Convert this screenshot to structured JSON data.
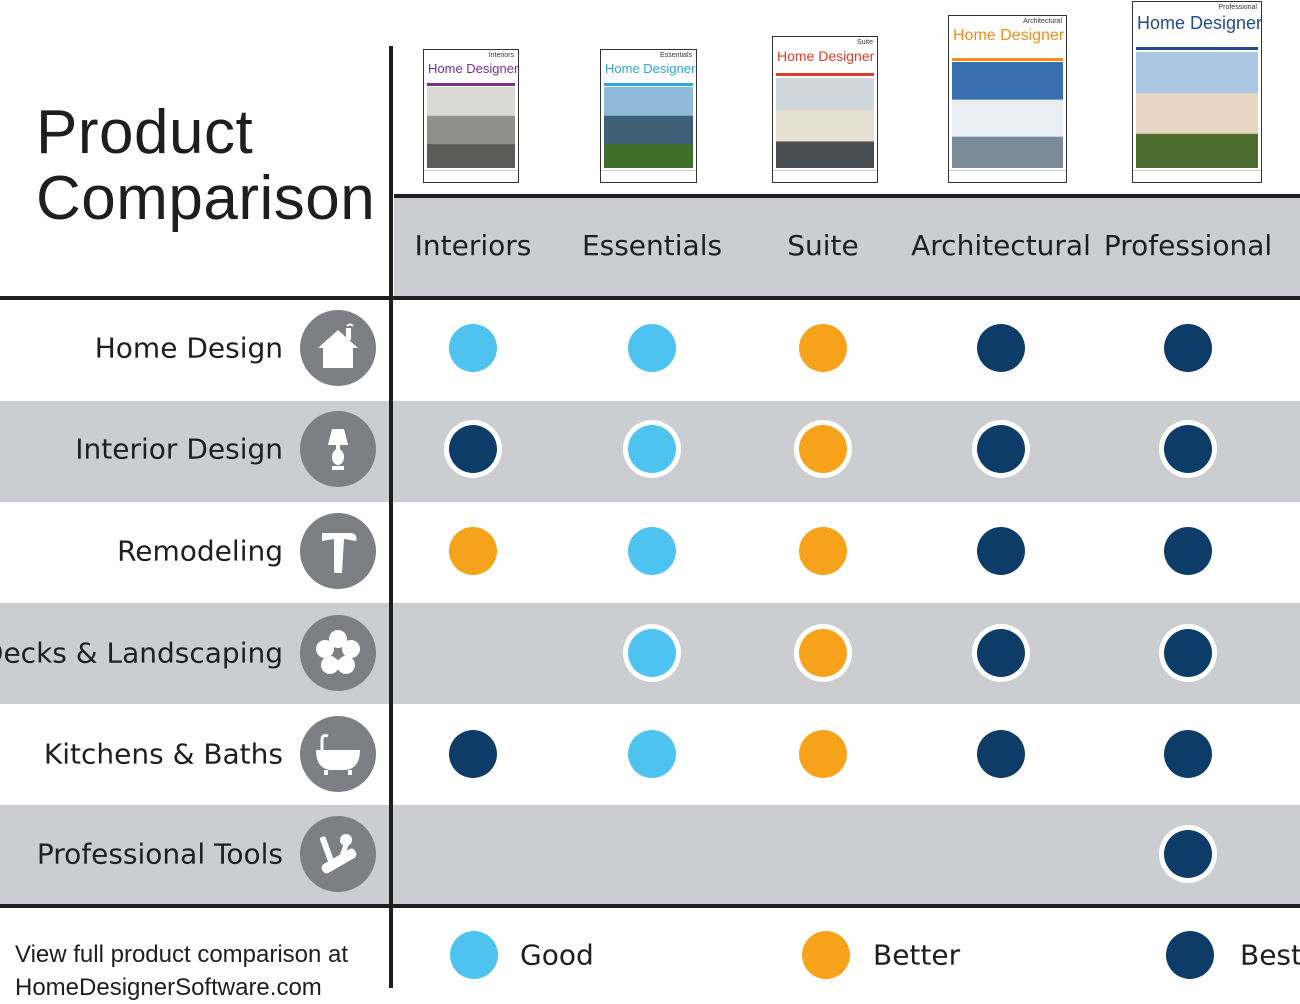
{
  "title_line1": "Product",
  "title_line2": "Comparison",
  "colors": {
    "good": "#4fc3ef",
    "better": "#f7a21b",
    "best": "#0d3c68",
    "shade": "#cbcdd0",
    "icon_bg": "#7d7f82"
  },
  "products": [
    {
      "label": "Interiors",
      "box_brand": "Home Designer",
      "box_edition": "Interiors"
    },
    {
      "label": "Essentials",
      "box_brand": "Home Designer",
      "box_edition": "Essentials"
    },
    {
      "label": "Suite",
      "box_brand": "Home Designer",
      "box_edition": "Suite"
    },
    {
      "label": "Architectural",
      "box_brand": "Home Designer",
      "box_edition": "Architectural"
    },
    {
      "label": "Professional",
      "box_brand": "Home Designer",
      "box_edition": "Professional"
    }
  ],
  "features": [
    {
      "label": "Home Design",
      "icon": "house-icon",
      "ratings": [
        "good",
        "good",
        "better",
        "best",
        "best"
      ]
    },
    {
      "label": "Interior Design",
      "icon": "lamp-icon",
      "ratings": [
        "best",
        "good",
        "better",
        "best",
        "best"
      ]
    },
    {
      "label": "Remodeling",
      "icon": "hammer-icon",
      "ratings": [
        "better",
        "good",
        "better",
        "best",
        "best"
      ]
    },
    {
      "label": "Decks & Landscaping",
      "icon": "flower-icon",
      "ratings": [
        "",
        "good",
        "better",
        "best",
        "best"
      ]
    },
    {
      "label": "Kitchens & Baths",
      "icon": "bathtub-icon",
      "ratings": [
        "best",
        "good",
        "better",
        "best",
        "best"
      ]
    },
    {
      "label": "Professional Tools",
      "icon": "tools-icon",
      "ratings": [
        "",
        "",
        "",
        "",
        "best"
      ]
    }
  ],
  "legend": {
    "good_label": "Good",
    "better_label": "Better",
    "best_label": "Best"
  },
  "footnote_line1": "View full product comparison at",
  "footnote_line2": "HomeDesignerSoftware.com"
}
